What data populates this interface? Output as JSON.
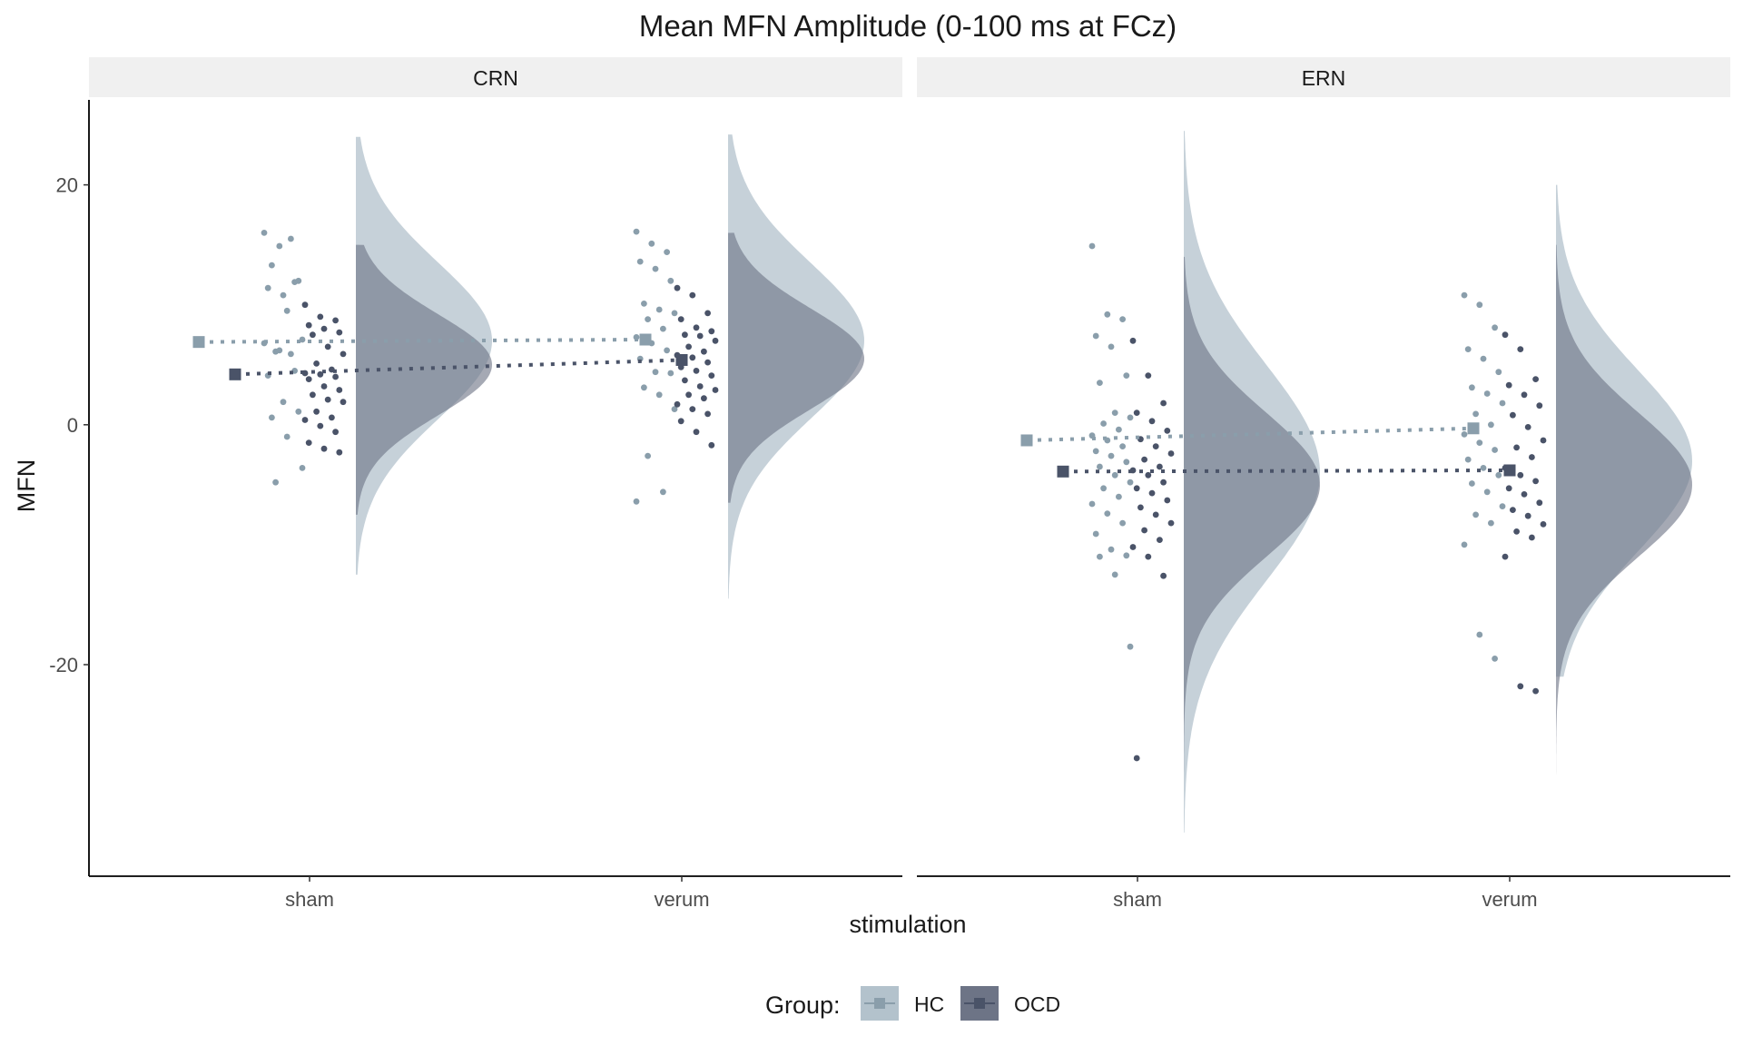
{
  "chart_data": {
    "type": "raincloud",
    "title": "Mean MFN Amplitude (0-100 ms at FCz)",
    "xlabel": "stimulation",
    "ylabel": "MFN",
    "ylim": [
      -37,
      27
    ],
    "yticks": [
      20,
      0,
      -20
    ],
    "categories": [
      "sham",
      "verum"
    ],
    "grid": false,
    "legend": {
      "position": "bottom",
      "title": "Group:",
      "entries": [
        {
          "label": "HC",
          "color": "#8a9eab",
          "fill": "#b3c2cc"
        },
        {
          "label": "OCD",
          "color": "#4a5368",
          "fill": "#6d7486"
        }
      ]
    },
    "panels": [
      {
        "label": "CRN",
        "means": {
          "HC": [
            6.9,
            7.1
          ],
          "OCD": [
            4.2,
            5.4
          ]
        },
        "densities": {
          "HC": [
            {
              "mode": 7,
              "sd": 6.5,
              "min": -12.5,
              "max": 24
            },
            {
              "mode": 7,
              "sd": 6.5,
              "min": -14.5,
              "max": 24.2
            }
          ],
          "OCD": [
            {
              "mode": 5,
              "sd": 4.2,
              "min": -7.5,
              "max": 15
            },
            {
              "mode": 5.5,
              "sd": 4.2,
              "min": -6.5,
              "max": 16
            }
          ]
        },
        "points": {
          "HC": [
            [
              16,
              14.9,
              11.9,
              11.4,
              10.8,
              12,
              13.3,
              9.5,
              7.1,
              6.1,
              5.9,
              6.8,
              6.2,
              4.5,
              4.1,
              1.9,
              1.1,
              0.6,
              -1,
              -3.6,
              -4.8,
              15.5
            ],
            [
              16.1,
              15.1,
              14.4,
              13.6,
              13,
              12,
              10.1,
              9.6,
              9.3,
              8.8,
              8,
              7.3,
              6.8,
              6.2,
              5.5,
              4.4,
              4.3,
              3.1,
              2.5,
              1.3,
              -2.6,
              -5.6,
              -6.4
            ]
          ],
          "OCD": [
            [
              10,
              9,
              8.7,
              8.3,
              8,
              7.7,
              7.5,
              6.5,
              5.9,
              5.1,
              4.6,
              4.3,
              4.2,
              4,
              3.8,
              3.2,
              2.9,
              2.5,
              2.1,
              1.9,
              1.1,
              0.6,
              0.4,
              -0.1,
              -0.6,
              -1.5,
              -2,
              -2.3
            ],
            [
              11.4,
              10.8,
              9.3,
              8.8,
              8.1,
              7.8,
              7.5,
              7.4,
              7,
              6.5,
              6.1,
              5.8,
              5.6,
              5.2,
              4.8,
              4.5,
              4.1,
              3.7,
              3.2,
              2.9,
              2.5,
              2.2,
              1.7,
              1.3,
              0.9,
              0.3,
              -0.6,
              -1.7
            ]
          ]
        }
      },
      {
        "label": "ERN",
        "means": {
          "HC": [
            -1.3,
            -0.3
          ],
          "OCD": [
            -3.9,
            -3.8
          ]
        },
        "densities": {
          "HC": [
            {
              "mode": -4,
              "sd": 9,
              "min": -34,
              "max": 24.5
            },
            {
              "mode": -3,
              "sd": 7.5,
              "min": -21,
              "max": 20
            }
          ],
          "OCD": [
            {
              "mode": -5,
              "sd": 6,
              "min": -34.5,
              "max": 14
            },
            {
              "mode": -5,
              "sd": 6,
              "min": -29.5,
              "max": 15
            }
          ]
        },
        "points": {
          "HC": [
            [
              14.9,
              9.2,
              8.8,
              7.4,
              6.5,
              4.1,
              3.5,
              1,
              0.6,
              0.1,
              -0.4,
              -0.9,
              -1.3,
              -1.8,
              -2.2,
              -2.6,
              -3.1,
              -3.5,
              -4.2,
              -4.8,
              -5.3,
              -6,
              -6.6,
              -7.4,
              -8.2,
              -9.1,
              -10.4,
              -10.9,
              -11,
              -12.5,
              -18.5
            ],
            [
              10.8,
              10,
              8.1,
              6.3,
              5.5,
              4.4,
              3.1,
              2.6,
              1.8,
              0.9,
              0,
              -0.8,
              -1.5,
              -2.1,
              -2.9,
              -3.6,
              -4.2,
              -4.9,
              -5.6,
              -6.8,
              -7.5,
              -8.2,
              -10,
              -17.5,
              -19.5
            ]
          ],
          "OCD": [
            [
              7,
              4.1,
              1.8,
              1,
              0.3,
              -0.5,
              -1.2,
              -1.8,
              -2.4,
              -2.9,
              -3.5,
              -3.8,
              -4.2,
              -4.8,
              -5.3,
              -5.7,
              -6.3,
              -6.9,
              -7.5,
              -8.2,
              -8.8,
              -9.6,
              -10.2,
              -11,
              -12.6,
              -27.8
            ],
            [
              7.5,
              6.3,
              3.8,
              3.3,
              2.5,
              1.6,
              0.8,
              -0.2,
              -1.3,
              -1.9,
              -2.7,
              -3.6,
              -4.2,
              -4.7,
              -5.3,
              -5.8,
              -6.5,
              -7.1,
              -7.6,
              -8.3,
              -8.9,
              -9.4,
              -11,
              -21.8,
              -22.2
            ]
          ]
        }
      }
    ]
  }
}
